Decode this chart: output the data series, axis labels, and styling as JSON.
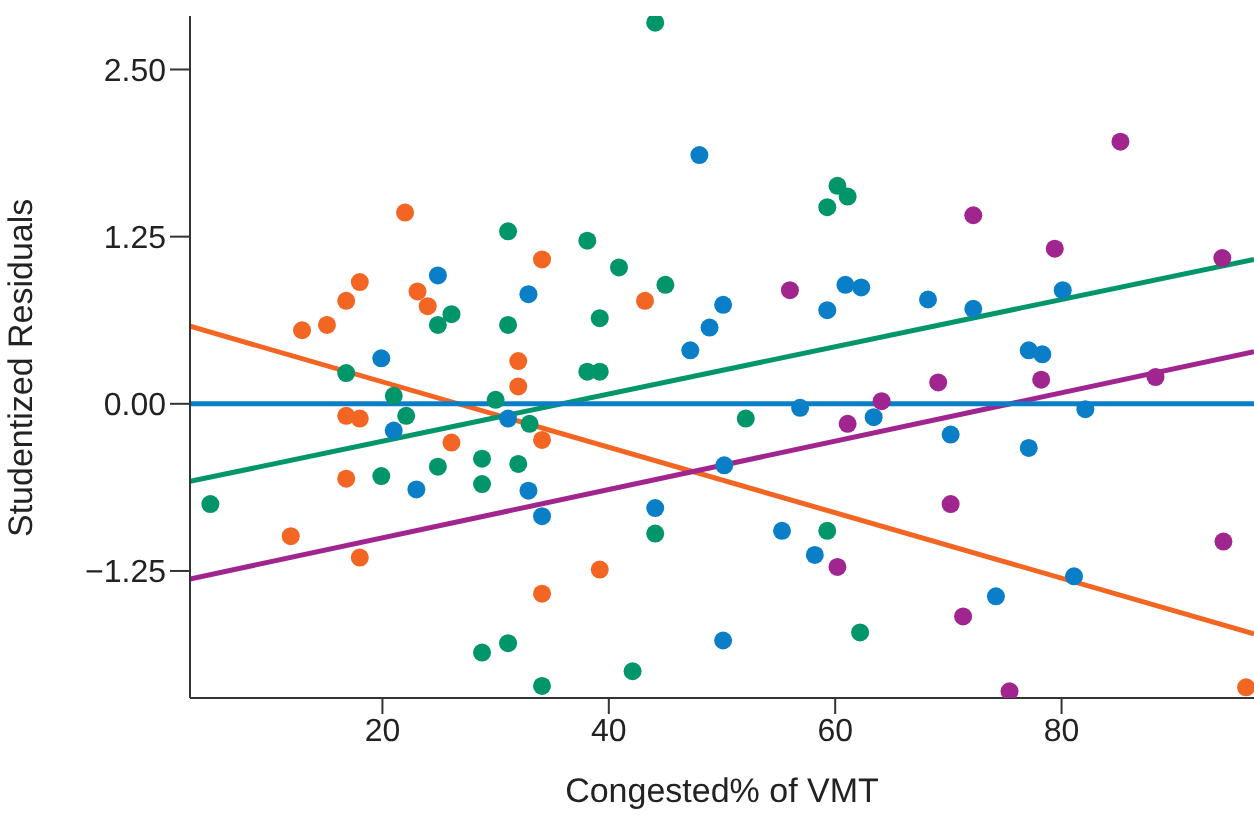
{
  "chart_data": {
    "type": "scatter",
    "xlabel": "Congested% of VMT",
    "ylabel": "Studentized Residuals",
    "xlim": [
      3,
      97
    ],
    "ylim": [
      -2.2,
      2.9
    ],
    "xticks": [
      20,
      40,
      60,
      80
    ],
    "yticks": [
      {
        "value": -1.25,
        "label": "−1.25"
      },
      {
        "value": 0,
        "label": "0.00"
      },
      {
        "value": 1.25,
        "label": "1.25"
      },
      {
        "value": 2.5,
        "label": "2.50"
      }
    ],
    "grid": false,
    "legend": false,
    "marker": "circle",
    "series": [
      {
        "color": "#f26522",
        "x": [
          11.9,
          12.9,
          15.1,
          16.8,
          18.0,
          22.0,
          23.1,
          24.0,
          16.8,
          18.0,
          16.8,
          18.0,
          26.1,
          32.0,
          32.0,
          34.1,
          34.1,
          34.1,
          39.2,
          43.2,
          96.3
        ],
        "values": [
          -0.99,
          0.55,
          0.59,
          0.77,
          0.91,
          1.43,
          0.84,
          0.73,
          -0.09,
          -0.11,
          -0.56,
          -1.15,
          -0.29,
          0.32,
          0.13,
          1.08,
          -0.27,
          -1.42,
          -1.24,
          0.77,
          -2.12
        ]
      },
      {
        "color": "#00966a",
        "x": [
          44.1,
          31.1,
          38.1,
          40.9,
          45.0,
          24.9,
          26.1,
          31.1,
          39.2,
          16.8,
          38.1,
          39.2,
          21.0,
          30.0,
          22.1,
          60.2,
          59.3,
          61.1,
          4.8,
          19.9,
          24.9,
          28.8,
          28.8,
          32.0,
          33.0,
          44.1,
          28.8,
          31.1,
          34.1,
          42.1,
          52.1,
          59.3,
          62.2
        ],
        "values": [
          2.85,
          1.29,
          1.22,
          1.02,
          0.89,
          0.59,
          0.67,
          0.59,
          0.64,
          0.23,
          0.24,
          0.24,
          0.06,
          0.03,
          -0.09,
          1.63,
          1.47,
          1.55,
          -0.75,
          -0.54,
          -0.47,
          -0.41,
          -0.6,
          -0.45,
          -0.15,
          -0.97,
          -1.86,
          -1.79,
          -2.11,
          -2.0,
          -0.11,
          -0.95,
          -1.71
        ]
      },
      {
        "color": "#0a7fc8",
        "x": [
          48.0,
          24.9,
          32.9,
          50.1,
          48.9,
          47.2,
          19.9,
          60.9,
          62.3,
          59.3,
          68.2,
          72.2,
          80.1,
          77.1,
          78.3,
          56.9,
          82.1,
          21.0,
          31.1,
          23.0,
          32.9,
          34.1,
          44.1,
          50.2,
          50.1,
          63.4,
          70.2,
          77.1,
          55.3,
          58.2,
          74.2,
          81.1
        ],
        "values": [
          1.86,
          0.96,
          0.82,
          0.74,
          0.57,
          0.4,
          0.34,
          0.89,
          0.87,
          0.7,
          0.78,
          0.71,
          0.85,
          0.4,
          0.37,
          -0.03,
          -0.04,
          -0.2,
          -0.11,
          -0.64,
          -0.65,
          -0.84,
          -0.78,
          -0.46,
          -1.77,
          -0.1,
          -0.23,
          -0.33,
          -0.95,
          -1.13,
          -1.44,
          -1.29
        ]
      },
      {
        "color": "#a0258f",
        "x": [
          85.2,
          72.2,
          79.4,
          94.2,
          56.0,
          69.1,
          78.2,
          88.3,
          64.1,
          61.1,
          70.2,
          60.2,
          94.3,
          71.3,
          75.4
        ],
        "values": [
          1.96,
          1.41,
          1.16,
          1.09,
          0.85,
          0.16,
          0.18,
          0.2,
          0.02,
          -0.15,
          -0.75,
          -1.22,
          -1.03,
          -1.59,
          -2.15
        ]
      },
      {
        "type": "line",
        "marker": "none",
        "color": "#f26522",
        "x": [
          3,
          97
        ],
        "values": [
          0.58,
          -1.72
        ]
      },
      {
        "type": "line",
        "marker": "none",
        "color": "#00966a",
        "x": [
          3,
          97
        ],
        "values": [
          -0.58,
          1.08
        ]
      },
      {
        "type": "line",
        "marker": "none",
        "color": "#a0258f",
        "x": [
          3,
          97
        ],
        "values": [
          -1.31,
          0.39
        ]
      },
      {
        "type": "line",
        "marker": "none",
        "color": "#0a7fc8",
        "x": [
          3,
          97
        ],
        "values": [
          0,
          0
        ]
      }
    ]
  }
}
